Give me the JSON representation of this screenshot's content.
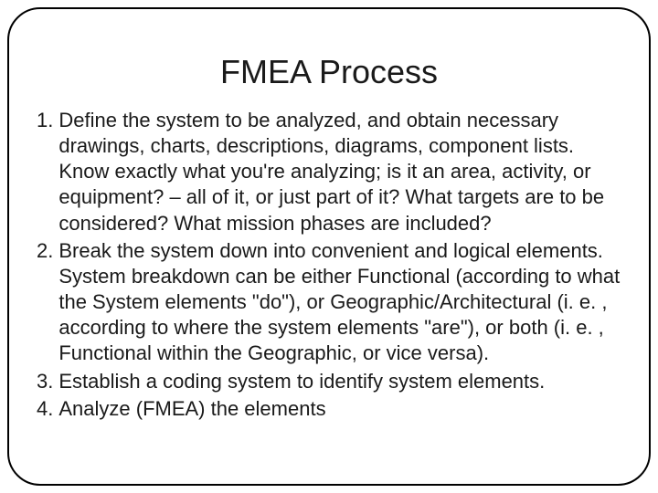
{
  "slide": {
    "title": "FMEA Process",
    "title_fontsize": 36,
    "body_fontsize": 22,
    "border_color": "#000000",
    "border_radius": 36,
    "background_color": "#ffffff",
    "text_color": "#1a1a1a",
    "items": [
      {
        "number": "1.",
        "text": "Define the system to be analyzed, and obtain necessary drawings, charts, descriptions, diagrams, component lists. Know exactly what you're analyzing; is it an area,  activity, or equipment? – all of it, or just part of it? What targets are to be considered? What mission phases are included?"
      },
      {
        "number": "2.",
        "text": "Break the system down into convenient and logical elements. System breakdown can be either Functional (according to what the System elements \"do\"), or Geographic/Architectural (i. e. , according to where the system elements \"are\"), or both (i. e. , Functional within the Geographic, or vice versa)."
      },
      {
        "number": "3.",
        "text": "Establish a coding system to identify system elements."
      },
      {
        "number": "4.",
        "text": "Analyze (FMEA) the elements"
      }
    ]
  }
}
